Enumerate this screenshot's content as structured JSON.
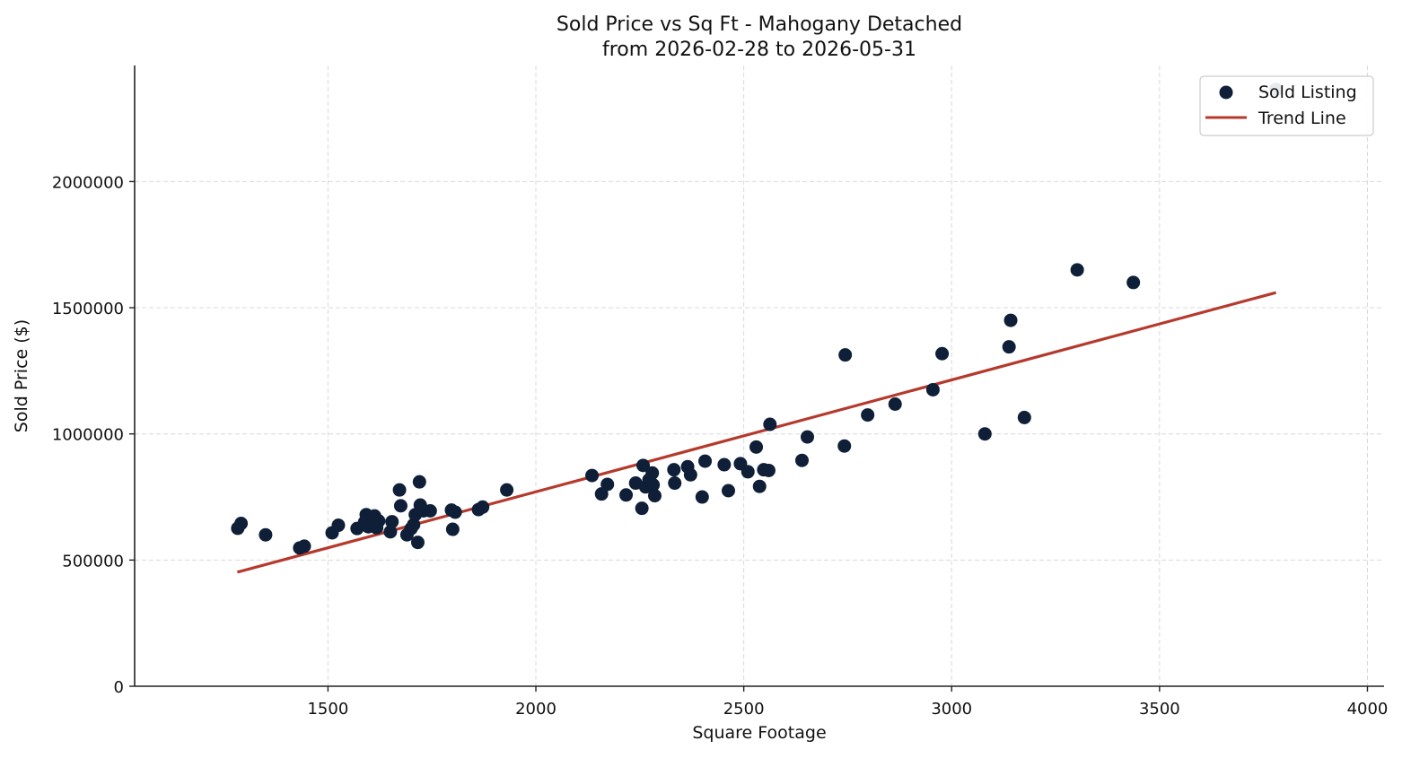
{
  "chart_data": {
    "type": "scatter",
    "title": "Sold Price vs Sq Ft - Mahogany Detached",
    "subtitle": "from 2026-02-28 to 2026-05-31",
    "xlabel": "Square Footage",
    "ylabel": "Sold Price ($)",
    "xlim": [
      1035,
      4040
    ],
    "ylim": [
      0,
      2460000
    ],
    "xticks": [
      1500,
      2000,
      2500,
      3000,
      3500,
      4000
    ],
    "yticks": [
      0,
      500000,
      1000000,
      1500000,
      2000000
    ],
    "grid": true,
    "legend_position": "top-right",
    "series": [
      {
        "name": "Sold Listing",
        "kind": "scatter",
        "color": "#0f1f38",
        "points": [
          [
            1283,
            626000
          ],
          [
            1291,
            645000
          ],
          [
            1350,
            600000
          ],
          [
            1432,
            548000
          ],
          [
            1443,
            555000
          ],
          [
            1510,
            608000
          ],
          [
            1525,
            638000
          ],
          [
            1570,
            625000
          ],
          [
            1588,
            650000
          ],
          [
            1592,
            680000
          ],
          [
            1597,
            632000
          ],
          [
            1602,
            660000
          ],
          [
            1607,
            640000
          ],
          [
            1612,
            675000
          ],
          [
            1617,
            628000
          ],
          [
            1622,
            655000
          ],
          [
            1650,
            612000
          ],
          [
            1654,
            652000
          ],
          [
            1672,
            778000
          ],
          [
            1675,
            715000
          ],
          [
            1690,
            600000
          ],
          [
            1700,
            625000
          ],
          [
            1706,
            640000
          ],
          [
            1710,
            680000
          ],
          [
            1716,
            570000
          ],
          [
            1720,
            810000
          ],
          [
            1722,
            718000
          ],
          [
            1730,
            695000
          ],
          [
            1746,
            695000
          ],
          [
            1797,
            698000
          ],
          [
            1800,
            622000
          ],
          [
            1806,
            690000
          ],
          [
            1862,
            700000
          ],
          [
            1872,
            710000
          ],
          [
            1930,
            778000
          ],
          [
            2135,
            835000
          ],
          [
            2158,
            762000
          ],
          [
            2172,
            800000
          ],
          [
            2217,
            758000
          ],
          [
            2240,
            805000
          ],
          [
            2255,
            705000
          ],
          [
            2258,
            875000
          ],
          [
            2264,
            790000
          ],
          [
            2272,
            818000
          ],
          [
            2280,
            845000
          ],
          [
            2282,
            798000
          ],
          [
            2286,
            755000
          ],
          [
            2332,
            858000
          ],
          [
            2334,
            805000
          ],
          [
            2365,
            870000
          ],
          [
            2372,
            838000
          ],
          [
            2400,
            750000
          ],
          [
            2407,
            892000
          ],
          [
            2453,
            878000
          ],
          [
            2463,
            775000
          ],
          [
            2492,
            882000
          ],
          [
            2510,
            850000
          ],
          [
            2530,
            948000
          ],
          [
            2538,
            792000
          ],
          [
            2548,
            858000
          ],
          [
            2560,
            855000
          ],
          [
            2563,
            1038000
          ],
          [
            2640,
            895000
          ],
          [
            2653,
            988000
          ],
          [
            2742,
            952000
          ],
          [
            2744,
            1313000
          ],
          [
            2798,
            1075000
          ],
          [
            2864,
            1118000
          ],
          [
            2955,
            1175000
          ],
          [
            2977,
            1318000
          ],
          [
            3080,
            1000000
          ],
          [
            3138,
            1345000
          ],
          [
            3142,
            1450000
          ],
          [
            3175,
            1065000
          ],
          [
            3302,
            1650000
          ],
          [
            3437,
            1600000
          ],
          [
            3780,
            2365000
          ]
        ]
      },
      {
        "name": "Trend Line",
        "kind": "line",
        "color": "#b53a2d",
        "points": [
          [
            1282,
            452000
          ],
          [
            3780,
            1560000
          ]
        ]
      }
    ]
  }
}
